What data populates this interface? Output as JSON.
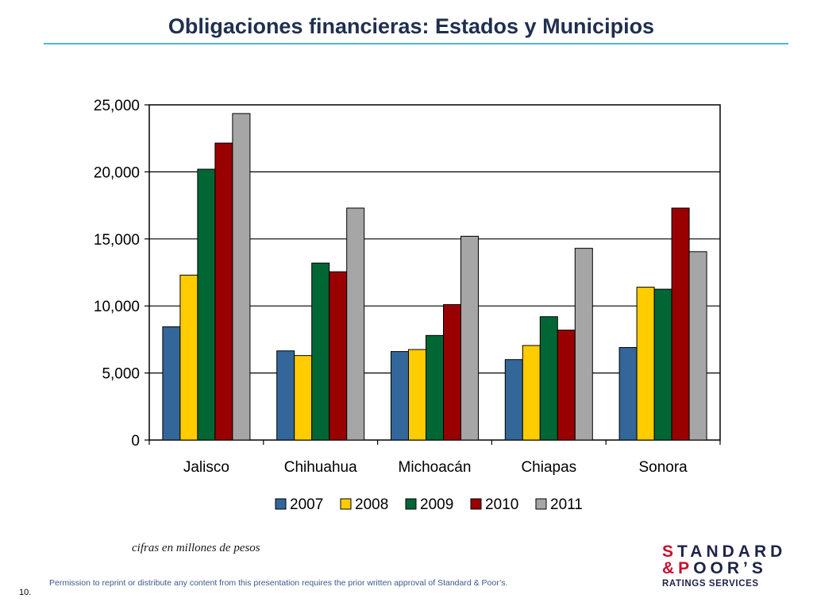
{
  "slide": {
    "title": "Obligaciones financieras: Estados y Municipios",
    "note": "cifras en millones de pesos",
    "permission": "Permission to reprint or distribute any content from this presentation requires the prior written approval of Standard & Poor’s.",
    "page_number": "10.",
    "accent_color": "#4fb4e6"
  },
  "logo": {
    "line1_first": "S",
    "line1_rest": "TANDARD",
    "line2_amp": "&",
    "line2_first": "P",
    "line2_rest": "OOR’S",
    "line3": "RATINGS SERVICES",
    "brand_color": "#1e2347",
    "accent_color": "#c8102e"
  },
  "chart_data": {
    "type": "bar",
    "title": "",
    "xlabel": "",
    "ylabel": "",
    "categories": [
      "Jalisco",
      "Chihuahua",
      "Michoacán",
      "Chiapas",
      "Sonora"
    ],
    "series": [
      {
        "name": "2007",
        "color": "#336699",
        "values": [
          8450,
          6650,
          6600,
          6000,
          6900
        ]
      },
      {
        "name": "2008",
        "color": "#ffcc00",
        "values": [
          12300,
          6300,
          6750,
          7050,
          11400
        ]
      },
      {
        "name": "2009",
        "color": "#006633",
        "values": [
          20200,
          13200,
          7800,
          9200,
          11250
        ]
      },
      {
        "name": "2010",
        "color": "#990000",
        "values": [
          22150,
          12550,
          10100,
          8200,
          17300
        ]
      },
      {
        "name": "2011",
        "color": "#a6a6a6",
        "values": [
          24350,
          17300,
          15200,
          14300,
          14050
        ]
      }
    ],
    "ylim": [
      0,
      25000
    ],
    "yticks": [
      "0",
      "5,000",
      "10,000",
      "15,000",
      "20,000",
      "25,000"
    ],
    "grid": true,
    "legend_position": "bottom"
  }
}
